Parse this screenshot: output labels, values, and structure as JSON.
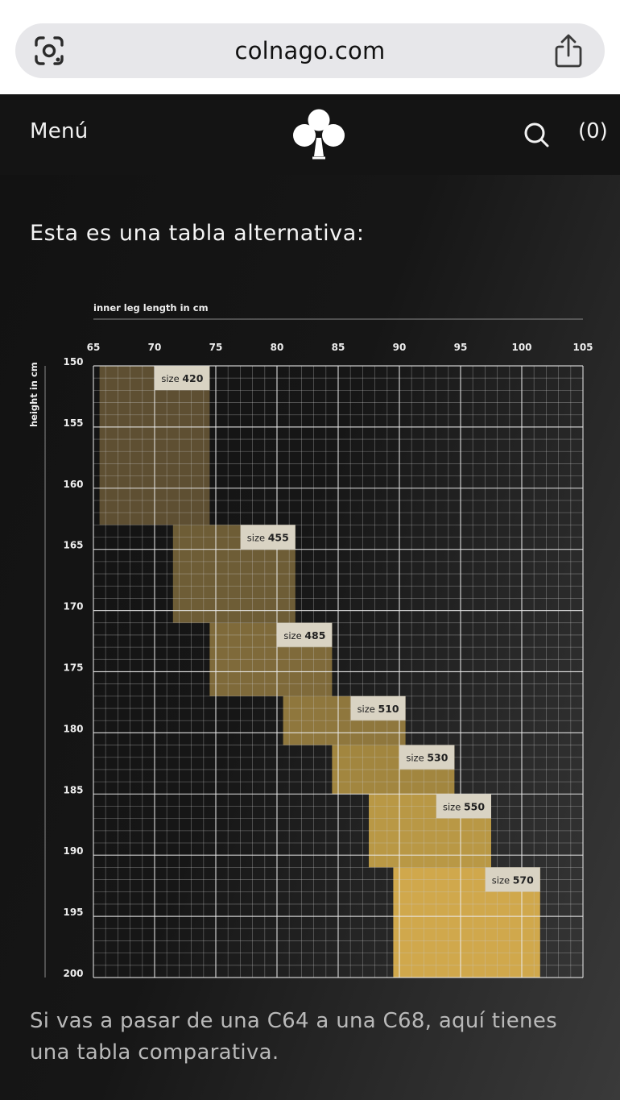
{
  "browser": {
    "url": "colnago.com",
    "icons": [
      "google-lens-icon",
      "share-icon"
    ]
  },
  "header": {
    "menu_label": "Menú",
    "logo": "colnago-clover-logo",
    "search_icon": "search-icon",
    "cart_label": "(0)"
  },
  "main": {
    "heading": "Esta es una tabla alternativa:",
    "footer_text": "Si vas a pasar de una C64 a una C68, aquí tienes una tabla comparativa."
  },
  "colors": {
    "background": "#141414",
    "text": "#f5f5f5",
    "muted_text": "#b9b9b9",
    "grid": "#c8c8c8",
    "size_colors": [
      "#5e4f32",
      "#6e5d36",
      "#7f6a3a",
      "#8f773d",
      "#a2863f",
      "#b99845",
      "#d0a84c"
    ]
  },
  "chart_data": {
    "type": "heatmap",
    "title": "",
    "xlabel": "inner leg length in cm",
    "ylabel": "height in cm",
    "xlim": [
      65,
      105
    ],
    "ylim": [
      150,
      200
    ],
    "x_ticks": [
      65,
      70,
      75,
      80,
      85,
      90,
      95,
      100,
      105
    ],
    "y_ticks": [
      150,
      155,
      160,
      165,
      170,
      175,
      180,
      185,
      190,
      195,
      200
    ],
    "grid": true,
    "y_axis_direction": "down",
    "regions": [
      {
        "label_prefix": "size",
        "label_value": "420",
        "x_range": [
          65.5,
          74.5
        ],
        "y_range": [
          150,
          163
        ]
      },
      {
        "label_prefix": "size",
        "label_value": "455",
        "x_range": [
          71.5,
          81.5
        ],
        "y_range": [
          163,
          171
        ]
      },
      {
        "label_prefix": "size",
        "label_value": "485",
        "x_range": [
          74.5,
          84.5
        ],
        "y_range": [
          171,
          177
        ]
      },
      {
        "label_prefix": "size",
        "label_value": "510",
        "x_range": [
          80.5,
          90.5
        ],
        "y_range": [
          177,
          181
        ]
      },
      {
        "label_prefix": "size",
        "label_value": "530",
        "x_range": [
          84.5,
          94.5
        ],
        "y_range": [
          181,
          185
        ]
      },
      {
        "label_prefix": "size",
        "label_value": "550",
        "x_range": [
          87.5,
          97.5
        ],
        "y_range": [
          185,
          191
        ]
      },
      {
        "label_prefix": "size",
        "label_value": "570",
        "x_range": [
          89.5,
          101.5
        ],
        "y_range": [
          191,
          200
        ]
      }
    ]
  }
}
